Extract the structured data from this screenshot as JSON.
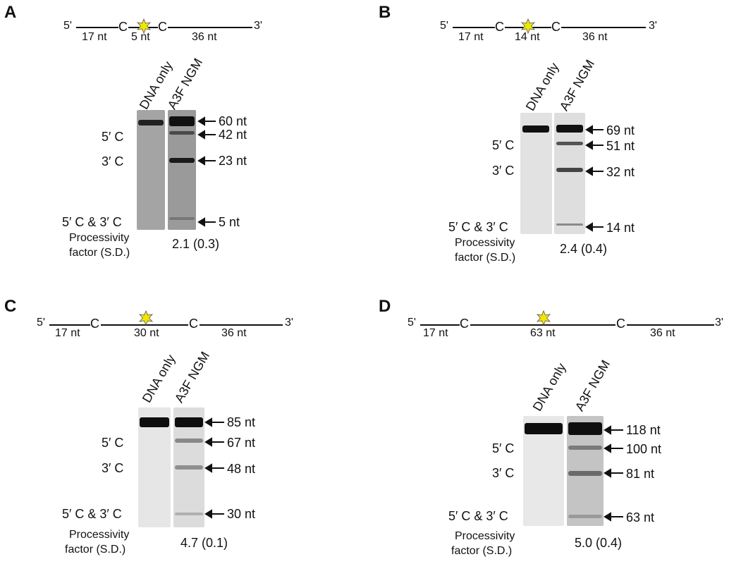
{
  "panels": [
    {
      "letter": "A",
      "schematic": {
        "left": "5'",
        "right": "3'",
        "c1": "C",
        "c2": "C",
        "seg1": "17 nt",
        "mid": "5 nt",
        "seg3": "36 nt"
      },
      "lanes": {
        "l1": "DNA only",
        "l2": "A3F NGM"
      },
      "rows": {
        "r1": "5′ C",
        "r2": "3′ C",
        "r3": "5′ C & 3′ C"
      },
      "bands": [
        "60 nt",
        "42 nt",
        "23 nt",
        "5 nt"
      ],
      "factor_label_1": "Processivity",
      "factor_label_2": "factor (S.D.)",
      "factor_value": "2.1 (0.3)"
    },
    {
      "letter": "B",
      "schematic": {
        "left": "5'",
        "right": "3'",
        "c1": "C",
        "c2": "C",
        "seg1": "17 nt",
        "mid": "14 nt",
        "seg3": "36 nt"
      },
      "lanes": {
        "l1": "DNA only",
        "l2": "A3F NGM"
      },
      "rows": {
        "r1": "5′ C",
        "r2": "3′ C",
        "r3": "5′ C & 3′ C"
      },
      "bands": [
        "69 nt",
        "51 nt",
        "32 nt",
        "14 nt"
      ],
      "factor_label_1": "Processivity",
      "factor_label_2": "factor (S.D.)",
      "factor_value": "2.4 (0.4)"
    },
    {
      "letter": "C",
      "schematic": {
        "left": "5'",
        "right": "3'",
        "c1": "C",
        "c2": "C",
        "seg1": "17 nt",
        "mid": "30 nt",
        "seg3": "36 nt"
      },
      "lanes": {
        "l1": "DNA only",
        "l2": "A3F NGM"
      },
      "rows": {
        "r1": "5′ C",
        "r2": "3′ C",
        "r3": "5′ C & 3′ C"
      },
      "bands": [
        "85 nt",
        "67 nt",
        "48 nt",
        "30 nt"
      ],
      "factor_label_1": "Processivity",
      "factor_label_2": "factor (S.D.)",
      "factor_value": "4.7 (0.1)"
    },
    {
      "letter": "D",
      "schematic": {
        "left": "5'",
        "right": "3'",
        "c1": "C",
        "c2": "C",
        "seg1": "17 nt",
        "mid": "63 nt",
        "seg3": "36 nt"
      },
      "lanes": {
        "l1": "DNA only",
        "l2": "A3F NGM"
      },
      "rows": {
        "r1": "5′ C",
        "r2": "3′ C",
        "r3": "5′ C & 3′ C"
      },
      "bands": [
        "118 nt",
        "100 nt",
        "81 nt",
        "63 nt"
      ],
      "factor_label_1": "Processivity",
      "factor_label_2": "factor (S.D.)",
      "factor_value": "5.0 (0.4)"
    }
  ],
  "colors": {
    "fluorophore": "#f2e600",
    "gel_dark": "#9d9d9d",
    "gel_light": "#e6e6e6",
    "band": "#101010"
  }
}
